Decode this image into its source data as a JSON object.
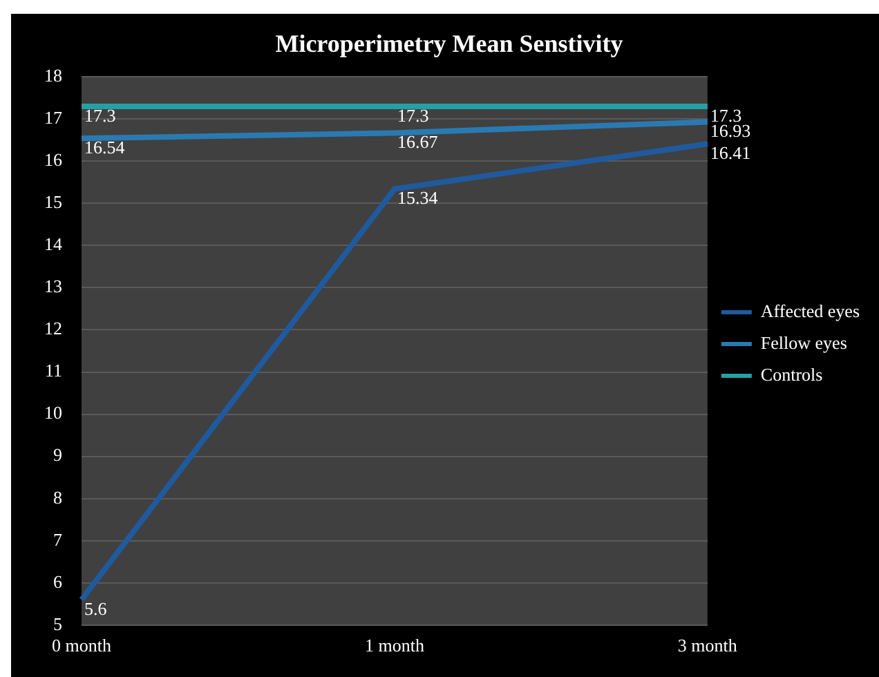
{
  "chart_data": {
    "type": "line",
    "title": "Microperimetry Mean Senstivity",
    "categories": [
      "0 month",
      "1 month",
      "3 month"
    ],
    "series": [
      {
        "name": "Affected eyes",
        "color": "#1f5a9e",
        "values": [
          5.6,
          15.34,
          16.41
        ]
      },
      {
        "name": "Fellow eyes",
        "color": "#2a7ab2",
        "values": [
          16.54,
          16.67,
          16.93
        ]
      },
      {
        "name": "Controls",
        "color": "#24a0a6",
        "values": [
          17.3,
          17.3,
          17.3
        ]
      }
    ],
    "ylim": [
      5,
      18
    ],
    "yticks": [
      5,
      6,
      7,
      8,
      9,
      10,
      11,
      12,
      13,
      14,
      15,
      16,
      17,
      18
    ],
    "grid": "y",
    "legend": "right",
    "marker": "none",
    "data_labels": true
  }
}
